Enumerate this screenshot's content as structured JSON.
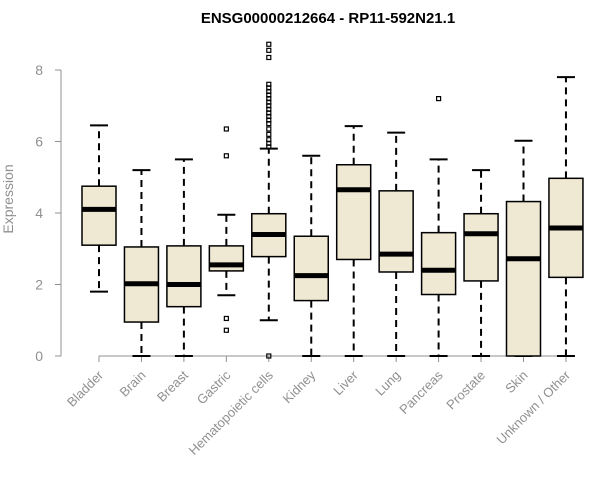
{
  "chart_data": {
    "type": "box",
    "title": "ENSG00000212664 - RP11-592N21.1",
    "xlabel": "",
    "ylabel": "Expression",
    "ylim": [
      0,
      8
    ],
    "yticks": [
      0,
      2,
      4,
      6,
      8
    ],
    "box_fill": "#efe8d2",
    "axis_color": "#909090",
    "categories": [
      "Bladder",
      "Brain",
      "Breast",
      "Gastric",
      "Hematopoietic cells",
      "Kidney",
      "Liver",
      "Lung",
      "Pancreas",
      "Prostate",
      "Skin",
      "Unknown / Other"
    ],
    "boxes": [
      {
        "name": "Bladder",
        "whisker_low": 1.8,
        "q1": 3.1,
        "median": 4.1,
        "q3": 4.75,
        "whisker_high": 6.45,
        "outliers": []
      },
      {
        "name": "Brain",
        "whisker_low": 0.0,
        "q1": 0.95,
        "median": 2.02,
        "q3": 3.05,
        "whisker_high": 5.2,
        "outliers": []
      },
      {
        "name": "Breast",
        "whisker_low": 0.0,
        "q1": 1.38,
        "median": 2.0,
        "q3": 3.08,
        "whisker_high": 5.5,
        "outliers": []
      },
      {
        "name": "Gastric",
        "whisker_low": 1.7,
        "q1": 2.38,
        "median": 2.55,
        "q3": 3.08,
        "whisker_high": 3.95,
        "outliers": [
          0.72,
          1.05,
          5.6,
          6.35
        ]
      },
      {
        "name": "Hematopoietic cells",
        "whisker_low": 1.0,
        "q1": 2.78,
        "median": 3.4,
        "q3": 3.98,
        "whisker_high": 5.8,
        "outliers": [
          0.0,
          5.85,
          5.95,
          6.05,
          6.2,
          6.35,
          6.5,
          6.6,
          6.7,
          6.8,
          6.9,
          7.0,
          7.1,
          7.2,
          7.3,
          7.4,
          7.5,
          7.6,
          8.35,
          8.55,
          8.72
        ]
      },
      {
        "name": "Kidney",
        "whisker_low": 0.0,
        "q1": 1.55,
        "median": 2.25,
        "q3": 3.35,
        "whisker_high": 5.6,
        "outliers": []
      },
      {
        "name": "Liver",
        "whisker_low": 0.0,
        "q1": 2.7,
        "median": 4.65,
        "q3": 5.35,
        "whisker_high": 6.43,
        "outliers": []
      },
      {
        "name": "Lung",
        "whisker_low": 0.0,
        "q1": 2.35,
        "median": 2.85,
        "q3": 4.62,
        "whisker_high": 6.25,
        "outliers": []
      },
      {
        "name": "Pancreas",
        "whisker_low": 0.0,
        "q1": 1.72,
        "median": 2.4,
        "q3": 3.45,
        "whisker_high": 5.5,
        "outliers": [
          7.2
        ]
      },
      {
        "name": "Prostate",
        "whisker_low": 0.0,
        "q1": 2.1,
        "median": 3.42,
        "q3": 3.98,
        "whisker_high": 5.2,
        "outliers": []
      },
      {
        "name": "Skin",
        "whisker_low": 0.0,
        "q1": 0.0,
        "median": 2.72,
        "q3": 4.32,
        "whisker_high": 6.02,
        "outliers": []
      },
      {
        "name": "Unknown / Other",
        "whisker_low": 0.0,
        "q1": 2.2,
        "median": 3.58,
        "q3": 4.97,
        "whisker_high": 7.8,
        "outliers": []
      }
    ]
  }
}
